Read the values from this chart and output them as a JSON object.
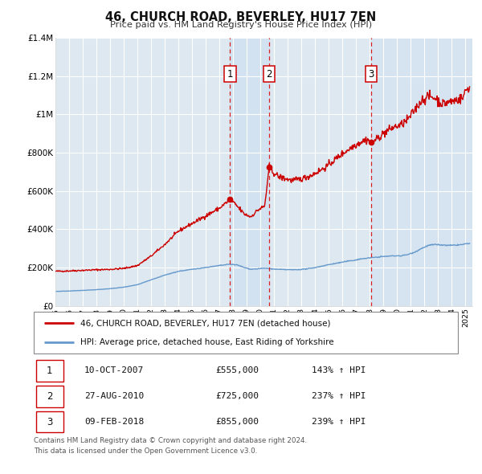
{
  "title": "46, CHURCH ROAD, BEVERLEY, HU17 7EN",
  "subtitle": "Price paid vs. HM Land Registry's House Price Index (HPI)",
  "ylim": [
    0,
    1400000
  ],
  "yticks": [
    0,
    200000,
    400000,
    600000,
    800000,
    1000000,
    1200000,
    1400000
  ],
  "ytick_labels": [
    "£0",
    "£200K",
    "£400K",
    "£600K",
    "£800K",
    "£1M",
    "£1.2M",
    "£1.4M"
  ],
  "xlim_start": 1995.0,
  "xlim_end": 2025.5,
  "fig_bg_color": "#ffffff",
  "plot_bg_color": "#dde8f0",
  "red_line_color": "#cc0000",
  "blue_line_color": "#6699cc",
  "vline_color": "#dd0000",
  "grid_color": "#ffffff",
  "transactions": [
    {
      "date_decimal": 2007.78,
      "price": 555000,
      "label": "1"
    },
    {
      "date_decimal": 2010.65,
      "price": 725000,
      "label": "2"
    },
    {
      "date_decimal": 2018.1,
      "price": 855000,
      "label": "3"
    }
  ],
  "transaction_table": [
    {
      "num": "1",
      "date": "10-OCT-2007",
      "price": "£555,000",
      "hpi": "143% ↑ HPI"
    },
    {
      "num": "2",
      "date": "27-AUG-2010",
      "price": "£725,000",
      "hpi": "237% ↑ HPI"
    },
    {
      "num": "3",
      "date": "09-FEB-2018",
      "price": "£855,000",
      "hpi": "239% ↑ HPI"
    }
  ],
  "legend_line1": "46, CHURCH ROAD, BEVERLEY, HU17 7EN (detached house)",
  "legend_line2": "HPI: Average price, detached house, East Riding of Yorkshire",
  "footer_line1": "Contains HM Land Registry data © Crown copyright and database right 2024.",
  "footer_line2": "This data is licensed under the Open Government Licence v3.0.",
  "red_anchors": [
    [
      1995.0,
      180000
    ],
    [
      1996.0,
      182000
    ],
    [
      1997.0,
      185000
    ],
    [
      1998.0,
      188000
    ],
    [
      1999.0,
      190000
    ],
    [
      2000.0,
      195000
    ],
    [
      2001.0,
      210000
    ],
    [
      2002.0,
      260000
    ],
    [
      2003.0,
      320000
    ],
    [
      2004.0,
      390000
    ],
    [
      2005.0,
      430000
    ],
    [
      2006.0,
      470000
    ],
    [
      2007.0,
      510000
    ],
    [
      2007.78,
      555000
    ],
    [
      2008.3,
      520000
    ],
    [
      2008.8,
      480000
    ],
    [
      2009.3,
      465000
    ],
    [
      2009.8,
      500000
    ],
    [
      2010.3,
      520000
    ],
    [
      2010.65,
      725000
    ],
    [
      2010.9,
      700000
    ],
    [
      2011.3,
      675000
    ],
    [
      2011.8,
      665000
    ],
    [
      2012.3,
      655000
    ],
    [
      2012.8,
      660000
    ],
    [
      2013.3,
      670000
    ],
    [
      2013.8,
      685000
    ],
    [
      2014.3,
      705000
    ],
    [
      2014.8,
      725000
    ],
    [
      2015.3,
      755000
    ],
    [
      2015.8,
      785000
    ],
    [
      2016.3,
      810000
    ],
    [
      2016.8,
      835000
    ],
    [
      2017.3,
      855000
    ],
    [
      2017.8,
      870000
    ],
    [
      2018.1,
      855000
    ],
    [
      2018.5,
      870000
    ],
    [
      2018.8,
      890000
    ],
    [
      2019.3,
      915000
    ],
    [
      2019.8,
      935000
    ],
    [
      2020.3,
      945000
    ],
    [
      2020.8,
      975000
    ],
    [
      2021.3,
      1025000
    ],
    [
      2021.8,
      1075000
    ],
    [
      2022.3,
      1095000
    ],
    [
      2022.8,
      1085000
    ],
    [
      2023.3,
      1055000
    ],
    [
      2023.8,
      1065000
    ],
    [
      2024.3,
      1075000
    ],
    [
      2024.8,
      1085000
    ],
    [
      2025.0,
      1125000
    ],
    [
      2025.3,
      1145000
    ]
  ],
  "blue_anchors": [
    [
      1995.0,
      75000
    ],
    [
      1996.0,
      77000
    ],
    [
      1997.0,
      80000
    ],
    [
      1998.0,
      84000
    ],
    [
      1999.0,
      89000
    ],
    [
      2000.0,
      97000
    ],
    [
      2001.0,
      110000
    ],
    [
      2002.0,
      135000
    ],
    [
      2003.0,
      160000
    ],
    [
      2004.0,
      180000
    ],
    [
      2005.0,
      190000
    ],
    [
      2006.0,
      200000
    ],
    [
      2007.0,
      210000
    ],
    [
      2007.78,
      217000
    ],
    [
      2008.3,
      213000
    ],
    [
      2008.8,
      200000
    ],
    [
      2009.3,
      191000
    ],
    [
      2009.8,
      193000
    ],
    [
      2010.3,
      196000
    ],
    [
      2010.65,
      194000
    ],
    [
      2010.9,
      192000
    ],
    [
      2011.3,
      190000
    ],
    [
      2011.8,
      189000
    ],
    [
      2012.3,
      188000
    ],
    [
      2012.8,
      189000
    ],
    [
      2013.3,
      192000
    ],
    [
      2013.8,
      197000
    ],
    [
      2014.3,
      204000
    ],
    [
      2014.8,
      212000
    ],
    [
      2015.3,
      219000
    ],
    [
      2015.8,
      225000
    ],
    [
      2016.3,
      232000
    ],
    [
      2016.8,
      237000
    ],
    [
      2017.3,
      244000
    ],
    [
      2017.8,
      249000
    ],
    [
      2018.1,
      251000
    ],
    [
      2018.5,
      254000
    ],
    [
      2018.8,
      256000
    ],
    [
      2019.3,
      259000
    ],
    [
      2019.8,
      261000
    ],
    [
      2020.3,
      261000
    ],
    [
      2020.8,
      268000
    ],
    [
      2021.3,
      281000
    ],
    [
      2021.8,
      300000
    ],
    [
      2022.3,
      316000
    ],
    [
      2022.8,
      320000
    ],
    [
      2023.3,
      317000
    ],
    [
      2023.8,
      315000
    ],
    [
      2024.3,
      317000
    ],
    [
      2024.8,
      320000
    ],
    [
      2025.0,
      323000
    ],
    [
      2025.3,
      326000
    ]
  ]
}
